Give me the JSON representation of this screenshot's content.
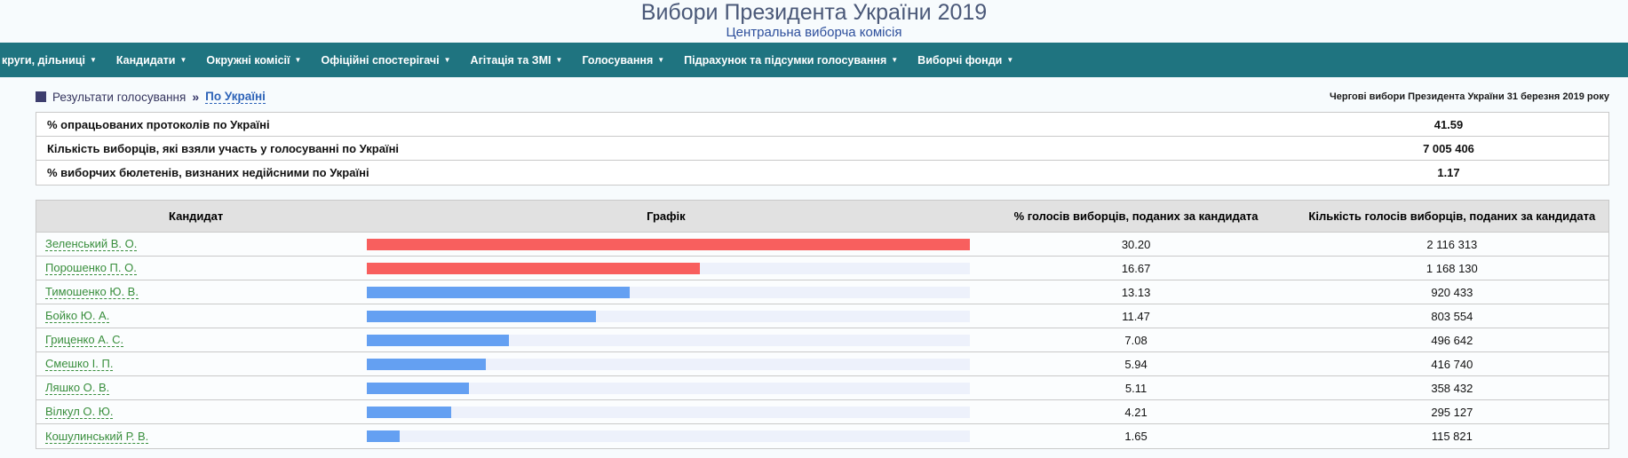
{
  "header": {
    "title": "Вибори Президента України 2019",
    "subtitle": "Центральна виборча комісія"
  },
  "nav": {
    "items": [
      {
        "label": "круги, дільниці"
      },
      {
        "label": "Кандидати"
      },
      {
        "label": "Окружні комісії"
      },
      {
        "label": "Офіційні спостерігачі"
      },
      {
        "label": "Агітація та ЗМІ"
      },
      {
        "label": "Голосування"
      },
      {
        "label": "Підрахунок та підсумки голосування"
      },
      {
        "label": "Виборчі фонди"
      }
    ],
    "caret": "▼"
  },
  "breadcrumb": {
    "section": "Результати голосування",
    "separator": "»",
    "current": "По Україні",
    "note": "Чергові вибори Президента України 31 березня 2019 року"
  },
  "summary": {
    "rows": [
      {
        "label": "% опрацьованих протоколів по Україні",
        "value": "41.59"
      },
      {
        "label": "Кількість виборців, які взяли участь у голосуванні по Україні",
        "value": "7 005 406"
      },
      {
        "label": "% виборчих бюлетенів, визнаних недійсними по Україні",
        "value": "1.17"
      }
    ]
  },
  "results": {
    "columns": [
      "Кандидат",
      "Графік",
      "% голосів виборців, поданих за кандидата",
      "Кількість голосів виборців, поданих за кандидата"
    ],
    "max_percent": 30.2,
    "rows": [
      {
        "name": "Зеленський В. О.",
        "percent": "30.20",
        "votes": "2 116 313",
        "color": "red"
      },
      {
        "name": "Порошенко П. О.",
        "percent": "16.67",
        "votes": "1 168 130",
        "color": "red"
      },
      {
        "name": "Тимошенко Ю. В.",
        "percent": "13.13",
        "votes": "920 433",
        "color": "blue"
      },
      {
        "name": "Бойко Ю. А.",
        "percent": "11.47",
        "votes": "803 554",
        "color": "blue"
      },
      {
        "name": "Гриценко А. С.",
        "percent": "7.08",
        "votes": "496 642",
        "color": "blue"
      },
      {
        "name": "Смешко І. П.",
        "percent": "5.94",
        "votes": "416 740",
        "color": "blue"
      },
      {
        "name": "Ляшко О. В.",
        "percent": "5.11",
        "votes": "358 432",
        "color": "blue"
      },
      {
        "name": "Вілкул О. Ю.",
        "percent": "4.21",
        "votes": "295 127",
        "color": "blue"
      },
      {
        "name": "Кошулинський Р. В.",
        "percent": "1.65",
        "votes": "115 821",
        "color": "blue"
      }
    ]
  },
  "colors": {
    "nav_background": "#1f7480",
    "bar_red": "#f85f5e",
    "bar_blue": "#64a0f2",
    "bar_track": "#edf1fb",
    "candidate_link_green": "#388e3c",
    "breadcrumb_link_blue": "#2d63b8",
    "title_color": "#4a5878",
    "subtitle_color": "#2d4f9c"
  }
}
